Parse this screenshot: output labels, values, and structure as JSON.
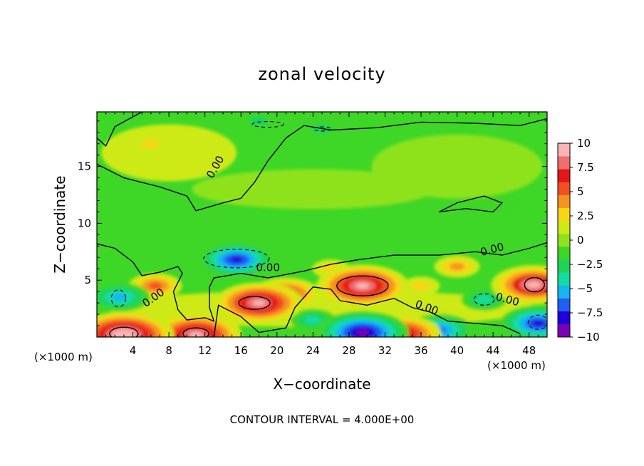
{
  "chart_data": {
    "type": "heatmap",
    "title": "zonal velocity",
    "xlabel": "X−coordinate",
    "ylabel": "Z−coordinate",
    "x_unit_left": "(×1000 m)",
    "x_unit_right": "(×1000 m)",
    "xlim": [
      0,
      50
    ],
    "ylim": [
      0,
      19.8
    ],
    "x_ticks": [
      4,
      8,
      12,
      16,
      20,
      24,
      28,
      32,
      36,
      40,
      44,
      48
    ],
    "x_tick_labels": [
      "4",
      "8",
      "12",
      "16",
      "20",
      "24",
      "28",
      "32",
      "36",
      "40",
      "44",
      "48"
    ],
    "y_ticks": [
      5,
      10,
      15
    ],
    "y_tick_labels": [
      "5",
      "10",
      "15"
    ],
    "colorbar": {
      "min": -10,
      "max": 10,
      "ticks": [
        10,
        7.5,
        5,
        2.5,
        0,
        -2.5,
        -5,
        -7.5,
        -10
      ],
      "tick_labels": [
        "10",
        "7.5",
        "5",
        "2.5",
        "0",
        "−2.5",
        "−5",
        "−7.5",
        "−10"
      ],
      "colors": [
        "#7b00b5",
        "#2000d8",
        "#1f5ff2",
        "#16b4f5",
        "#13dca3",
        "#1ed35a",
        "#3ed627",
        "#8ee21e",
        "#cdea17",
        "#f6d618",
        "#f59520",
        "#f25020",
        "#e21616",
        "#ef6e6e",
        "#f6b4b4"
      ]
    },
    "features": [
      {
        "kind": "positive",
        "x": 18,
        "z": 3.0,
        "value": 9.5
      },
      {
        "kind": "positive",
        "x": 21,
        "z": 3.8,
        "value": 7
      },
      {
        "kind": "positive",
        "x": 29.5,
        "z": 4.5,
        "value": 10
      },
      {
        "kind": "positive",
        "x": 48.5,
        "z": 4.6,
        "value": 9
      },
      {
        "kind": "positive",
        "x": 3,
        "z": 0.2,
        "value": 11
      },
      {
        "kind": "positive",
        "x": 11,
        "z": 0.2,
        "value": 10
      },
      {
        "kind": "positive",
        "x": 34,
        "z": 0.3,
        "value": 8
      },
      {
        "kind": "positive",
        "x": 6.5,
        "z": 4.5,
        "value": 5
      },
      {
        "kind": "positive",
        "x": 40,
        "z": 6.2,
        "value": 4
      },
      {
        "kind": "positive",
        "x": 26,
        "z": 6.0,
        "value": 3
      },
      {
        "kind": "positive",
        "x": 36,
        "z": 4.5,
        "value": 3
      },
      {
        "kind": "negative",
        "x": 15.5,
        "z": 6.8,
        "value": -8
      },
      {
        "kind": "negative",
        "x": 2.5,
        "z": 3.5,
        "value": -6
      },
      {
        "kind": "negative",
        "x": 29.5,
        "z": 0.4,
        "value": -10
      },
      {
        "kind": "negative",
        "x": 38,
        "z": 0.6,
        "value": -7
      },
      {
        "kind": "negative",
        "x": 49,
        "z": 1.2,
        "value": -8
      },
      {
        "kind": "negative",
        "x": 43,
        "z": 3.3,
        "value": -4
      },
      {
        "kind": "negative",
        "x": 24,
        "z": 1.5,
        "value": -4
      },
      {
        "kind": "positive",
        "x": 6,
        "z": 17,
        "value": 3
      },
      {
        "kind": "negative",
        "x": 18,
        "z": 19,
        "value": -3
      },
      {
        "kind": "negative",
        "x": 25,
        "z": 18.3,
        "value": -3
      }
    ],
    "contour_labels": [
      "0.00",
      "0.00",
      "0.00",
      "0.00",
      "0.00",
      "0.00",
      "0.00"
    ]
  },
  "footer": "CONTOUR INTERVAL = 4.000E+00"
}
